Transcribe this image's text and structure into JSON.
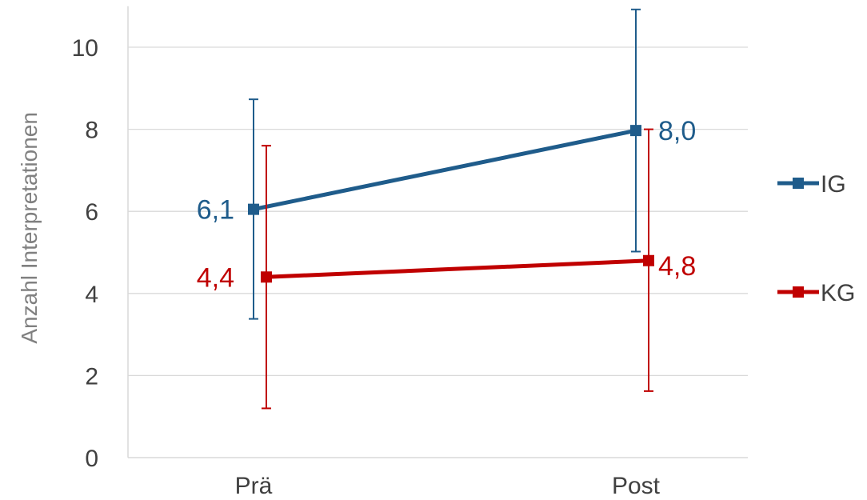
{
  "chart_data": {
    "type": "line",
    "categories": [
      "Prä",
      "Post"
    ],
    "ylabel": "Anzahl Interpretationen",
    "xlabel": "",
    "ylim": [
      0,
      11
    ],
    "yticks": [
      0,
      2,
      4,
      6,
      8,
      10
    ],
    "grid": true,
    "legend_position": "right",
    "series": [
      {
        "name": "IG",
        "color": "#1F5C8B",
        "values": [
          6.05,
          7.97
        ],
        "labels": [
          "6,1",
          "8,0"
        ],
        "error_low": [
          3.38,
          5.02
        ],
        "error_high": [
          8.73,
          10.92
        ]
      },
      {
        "name": "KG",
        "color": "#C00000",
        "values": [
          4.4,
          4.8
        ],
        "labels": [
          "4,4",
          "4,8"
        ],
        "error_low": [
          1.2,
          1.62
        ],
        "error_high": [
          7.6,
          8.0
        ]
      }
    ]
  }
}
